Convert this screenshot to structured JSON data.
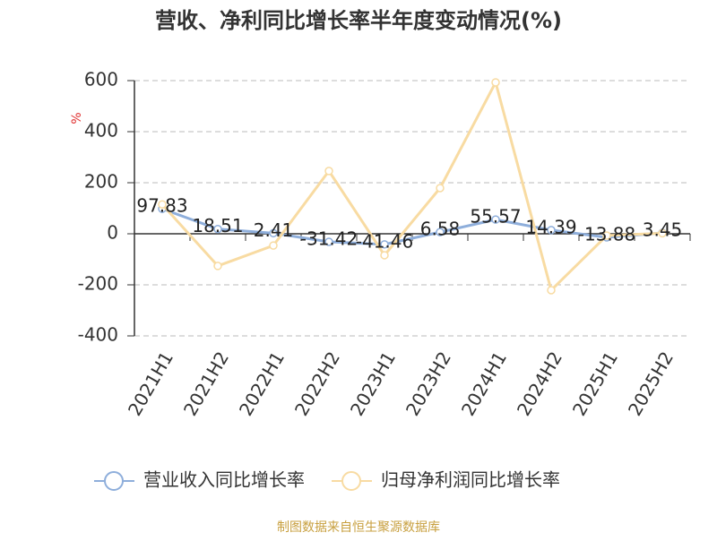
{
  "chart_data": {
    "type": "line",
    "title": "营收、净利同比增长率半年度变动情况(%)",
    "y_label": "%",
    "categories": [
      "2021H1",
      "2021H2",
      "2022H1",
      "2022H2",
      "2023H1",
      "2023H2",
      "2024H1",
      "2024H2",
      "2025H1",
      "2025H2"
    ],
    "series": [
      {
        "name": "营业收入同比增长率",
        "color": "#8eaedb",
        "values": [
          97.83,
          18.51,
          2.41,
          -31.42,
          -41.46,
          6.58,
          55.57,
          14.39,
          -13.88,
          3.45
        ],
        "data_labels": true
      },
      {
        "name": "归母净利润同比增长率",
        "color": "#f8dba2",
        "values": [
          115,
          -126,
          -46,
          246,
          -84,
          179,
          593,
          -221,
          -7,
          2
        ],
        "data_labels": false
      }
    ],
    "ylim": [
      -400,
      600
    ],
    "yticks": [
      -400,
      -200,
      0,
      200,
      400,
      600
    ],
    "grid": true,
    "legend": "bottom",
    "source": "制图数据来自恒生聚源数据库"
  }
}
